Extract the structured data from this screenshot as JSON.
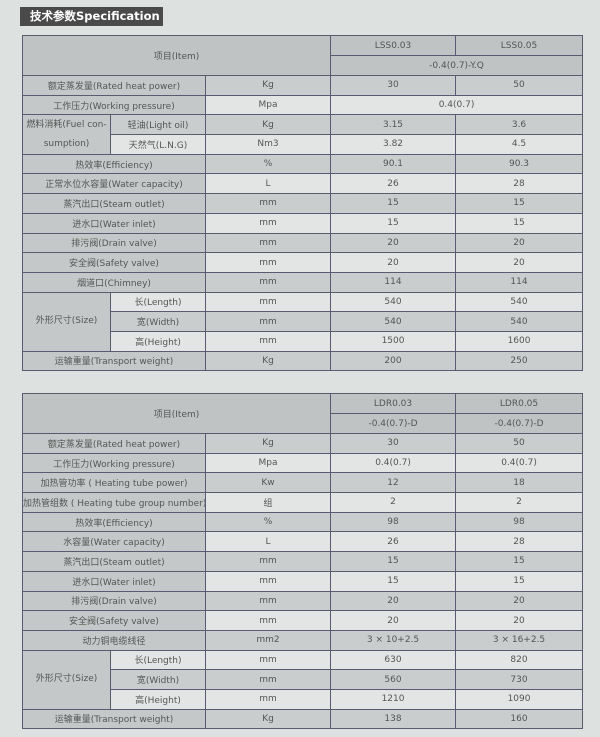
{
  "title": "技术参数Specification",
  "tables": [
    {
      "item_label": "项目(Item)",
      "models": [
        "LSS0.03",
        "LSS0.05"
      ],
      "suffix": [
        "-0.4(0.7)-Y.Q"
      ],
      "rows": [
        {
          "label": "额定蒸发量(Rated heat power)",
          "unit": "Kg",
          "v": [
            "30",
            "50"
          ]
        },
        {
          "label": "工作压力(Working pressure)",
          "unit": "Mpa",
          "v": [
            "0.4(0.7)"
          ]
        },
        {
          "group": "燃料消耗(Fuel con-sumption)",
          "items": [
            {
              "label": "轻油(Light oil)",
              "unit": "Kg",
              "v": [
                "3.15",
                "3.6"
              ]
            },
            {
              "label": "天然气(L.N.G)",
              "unit": "Nm3",
              "v": [
                "3.82",
                "4.5"
              ]
            }
          ]
        },
        {
          "label": "热效率(Efficiency)",
          "unit": "%",
          "v": [
            "90.1",
            "90.3"
          ]
        },
        {
          "label": "正常水位水容量(Water capacity)",
          "unit": "L",
          "v": [
            "26",
            "28"
          ]
        },
        {
          "label": "蒸汽出口(Steam outlet)",
          "unit": "mm",
          "v": [
            "15",
            "15"
          ]
        },
        {
          "label": "进水口(Water inlet)",
          "unit": "mm",
          "v": [
            "15",
            "15"
          ]
        },
        {
          "label": "排污阀(Drain valve)",
          "unit": "mm",
          "v": [
            "20",
            "20"
          ]
        },
        {
          "label": "安全阀(Safety valve)",
          "unit": "mm",
          "v": [
            "20",
            "20"
          ]
        },
        {
          "label": "烟道口(Chimney)",
          "unit": "mm",
          "v": [
            "114",
            "114"
          ]
        },
        {
          "group": "外形尺寸(Size)",
          "items": [
            {
              "label": "长(Length)",
              "unit": "mm",
              "v": [
                "540",
                "540"
              ]
            },
            {
              "label": "宽(Width)",
              "unit": "mm",
              "v": [
                "540",
                "540"
              ]
            },
            {
              "label": "高(Height)",
              "unit": "mm",
              "v": [
                "1500",
                "1600"
              ]
            }
          ]
        },
        {
          "label": "运输重量(Transport weight)",
          "unit": "Kg",
          "v": [
            "200",
            "250"
          ]
        }
      ]
    },
    {
      "item_label": "项目(Item)",
      "models": [
        "LDR0.03",
        "LDR0.05"
      ],
      "suffix": [
        "-0.4(0.7)-D",
        "-0.4(0.7)-D"
      ],
      "rows": [
        {
          "label": "额定蒸发量(Rated heat power)",
          "unit": "Kg",
          "v": [
            "30",
            "50"
          ]
        },
        {
          "label": "工作压力(Working pressure)",
          "unit": "Mpa",
          "v": [
            "0.4(0.7)",
            "0.4(0.7)"
          ]
        },
        {
          "label": "加热管功率 ( Heating tube power)",
          "unit": "Kw",
          "v": [
            "12",
            "18"
          ]
        },
        {
          "label": "加热管组数 ( Heating tube group number)",
          "unit": "组",
          "v": [
            "2",
            "2"
          ]
        },
        {
          "label": "热效率(Efficiency)",
          "unit": "%",
          "v": [
            "98",
            "98"
          ]
        },
        {
          "label": "水容量(Water capacity)",
          "unit": "L",
          "v": [
            "26",
            "28"
          ]
        },
        {
          "label": "蒸汽出口(Steam outlet)",
          "unit": "mm",
          "v": [
            "15",
            "15"
          ]
        },
        {
          "label": "进水口(Water inlet)",
          "unit": "mm",
          "v": [
            "15",
            "15"
          ]
        },
        {
          "label": "排污阀(Drain valve)",
          "unit": "mm",
          "v": [
            "20",
            "20"
          ]
        },
        {
          "label": "安全阀(Safety valve)",
          "unit": "mm",
          "v": [
            "20",
            "20"
          ]
        },
        {
          "label": "动力铜电缆线径",
          "unit": "mm2",
          "v": [
            "3 × 10+2.5",
            "3 × 16+2.5"
          ]
        },
        {
          "group": "外形尺寸(Size)",
          "items": [
            {
              "label": "长(Length)",
              "unit": "mm",
              "v": [
                "630",
                "820"
              ]
            },
            {
              "label": "宽(Width)",
              "unit": "mm",
              "v": [
                "560",
                "730"
              ]
            },
            {
              "label": "高(Height)",
              "unit": "mm",
              "v": [
                "1210",
                "1090"
              ]
            }
          ]
        },
        {
          "label": "运输重量(Transport weight)",
          "unit": "Kg",
          "v": [
            "138",
            "160"
          ]
        }
      ]
    }
  ]
}
